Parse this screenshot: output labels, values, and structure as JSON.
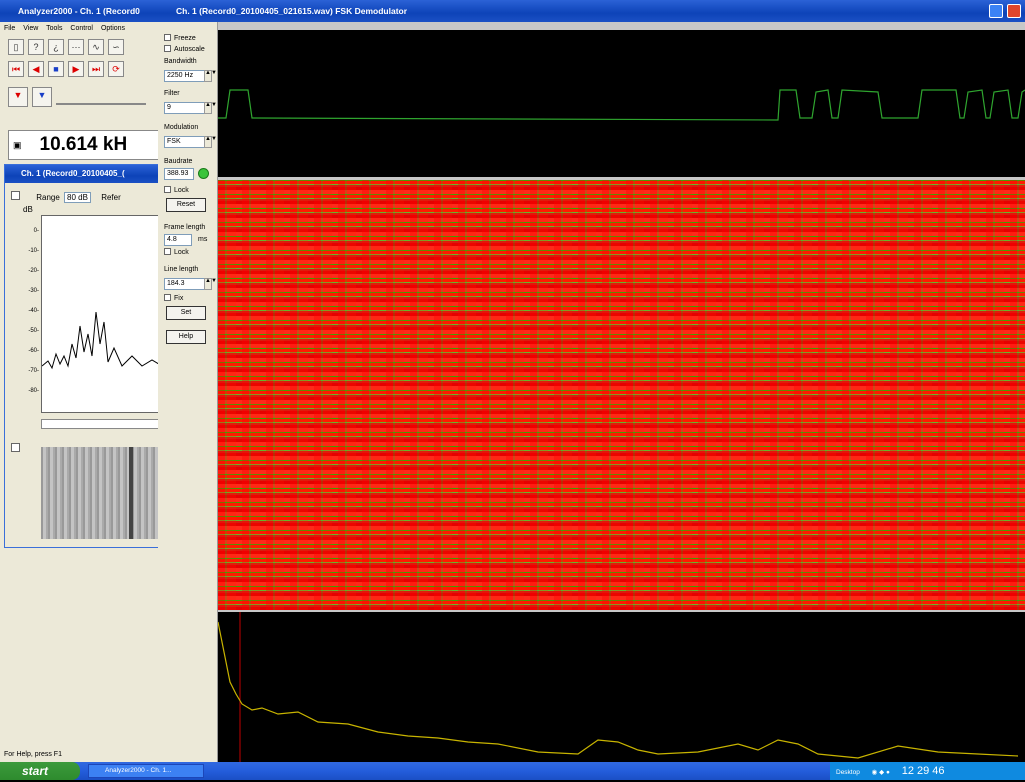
{
  "back_window": {
    "title": "Analyzer2000 - Ch. 1 (Record0",
    "menu": [
      "File",
      "View",
      "Tools",
      "Control",
      "Options"
    ],
    "frequency": "10.614 kH",
    "status": "For Help, press F1"
  },
  "spectrum_window": {
    "title": "Ch. 1 (Record0_20100405_(",
    "range_label": "Range",
    "range_value": "80 dB",
    "ref_label": "Refer",
    "unit": "dB",
    "y_ticks": [
      "0-",
      "-10-",
      "-20-",
      "-30-",
      "-40-",
      "-50-",
      "-60-",
      "-70-",
      "-80-"
    ]
  },
  "front_window": {
    "title": "Ch. 1 (Record0_20100405_021615.wav) FSK Demodulator"
  },
  "controls": {
    "freeze": "Freeze",
    "autoscale": "Autoscale",
    "bandwidth_label": "Bandwidth",
    "bandwidth_value": "2250 Hz",
    "filter_label": "Filter",
    "filter_value": "9",
    "modulation_label": "Modulation",
    "modulation_value": "FSK",
    "baudrate_label": "Baudrate",
    "baudrate_value": "388.93",
    "lock": "Lock",
    "reset": "Reset",
    "frame_length_label": "Frame length",
    "frame_length_value": "4.8",
    "frame_length_unit": "ms",
    "lock2": "Lock",
    "line_length_label": "Line length",
    "line_length_value": "184.3",
    "fix": "Fix",
    "set": "Set",
    "help": "Help"
  },
  "taskbar": {
    "start": "start",
    "task_item": "Analyzer2000 - Ch. 1...",
    "tray_desktop": "Desktop",
    "clock": "12 29 46"
  },
  "colors": {
    "signal_green": "#2fa52f",
    "waterfall_red": "#ff1a00",
    "waterfall_green": "#5fbf2a",
    "scope_yellow": "#c8b400"
  }
}
